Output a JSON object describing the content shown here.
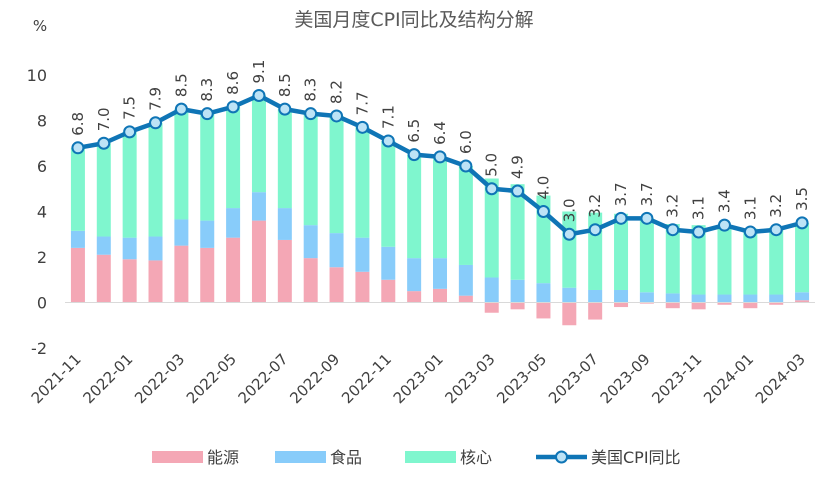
{
  "chart_data": {
    "type": "bar",
    "title": "美国月度CPI同比及结构分解",
    "unit_label": "%",
    "ylim": [
      -2,
      10
    ],
    "yticks": [
      -2,
      0,
      2,
      4,
      6,
      8,
      10
    ],
    "grid": false,
    "legend_position": "bottom",
    "categories": [
      "2021-11",
      "2021-12",
      "2022-01",
      "2022-02",
      "2022-03",
      "2022-04",
      "2022-05",
      "2022-06",
      "2022-07",
      "2022-08",
      "2022-09",
      "2022-10",
      "2022-11",
      "2022-12",
      "2023-01",
      "2023-02",
      "2023-03",
      "2023-04",
      "2023-05",
      "2023-06",
      "2023-07",
      "2023-08",
      "2023-09",
      "2023-10",
      "2023-11",
      "2023-12",
      "2024-01",
      "2024-02",
      "2024-03"
    ],
    "xtick_labels": [
      "2021-11",
      "",
      "2022-01",
      "",
      "2022-03",
      "",
      "2022-05",
      "",
      "2022-07",
      "",
      "2022-09",
      "",
      "2022-11",
      "",
      "2023-01",
      "",
      "2023-03",
      "",
      "2023-05",
      "",
      "2023-07",
      "",
      "2023-09",
      "",
      "2023-11",
      "",
      "2024-01",
      "",
      "2024-03"
    ],
    "series": [
      {
        "name": "能源",
        "kind": "stacked-bar",
        "color": "#F4A7B5",
        "values": [
          2.4,
          2.1,
          1.9,
          1.85,
          2.5,
          2.4,
          2.85,
          3.6,
          2.75,
          1.95,
          1.55,
          1.35,
          1.0,
          0.5,
          0.6,
          0.3,
          -0.45,
          -0.3,
          -0.7,
          -1.0,
          -0.75,
          -0.2,
          -0.05,
          -0.25,
          -0.3,
          -0.1,
          -0.25,
          -0.1,
          0.1
        ]
      },
      {
        "name": "食品",
        "kind": "stacked-bar",
        "color": "#88CCFA",
        "values": [
          0.75,
          0.8,
          0.95,
          1.05,
          1.15,
          1.2,
          1.3,
          1.25,
          1.4,
          1.45,
          1.5,
          1.5,
          1.45,
          1.45,
          1.35,
          1.35,
          1.1,
          1.0,
          0.85,
          0.65,
          0.55,
          0.55,
          0.45,
          0.4,
          0.35,
          0.35,
          0.35,
          0.35,
          0.35
        ]
      },
      {
        "name": "核心",
        "kind": "stacked-bar",
        "color": "#7FF6CE",
        "values": [
          3.65,
          4.1,
          4.65,
          5.0,
          4.85,
          4.7,
          4.45,
          4.25,
          4.35,
          4.9,
          5.15,
          4.85,
          4.65,
          4.55,
          4.45,
          4.35,
          4.35,
          4.2,
          3.85,
          3.35,
          3.4,
          3.35,
          3.25,
          3.05,
          3.05,
          3.05,
          2.9,
          2.95,
          3.05
        ]
      },
      {
        "name": "美国CPI同比",
        "kind": "line",
        "color": "#0F75B6",
        "marker_fill": "#BDE3F6",
        "values": [
          6.8,
          7.0,
          7.5,
          7.9,
          8.5,
          8.3,
          8.6,
          9.1,
          8.5,
          8.3,
          8.2,
          7.7,
          7.1,
          6.5,
          6.4,
          6.0,
          5.0,
          4.9,
          4.0,
          3.0,
          3.2,
          3.7,
          3.7,
          3.2,
          3.1,
          3.4,
          3.1,
          3.2,
          3.5
        ],
        "labels": [
          "6.8",
          "7.0",
          "7.5",
          "7.9",
          "8.5",
          "8.3",
          "8.6",
          "9.1",
          "8.5",
          "8.3",
          "8.2",
          "7.7",
          "7.1",
          "6.5",
          "6.4",
          "6.0",
          "5.0",
          "4.9",
          "4.0",
          "3.0",
          "3.2",
          "3.7",
          "3.7",
          "3.2",
          "3.1",
          "3.4",
          "3.1",
          "3.2",
          "3.5"
        ]
      }
    ]
  }
}
